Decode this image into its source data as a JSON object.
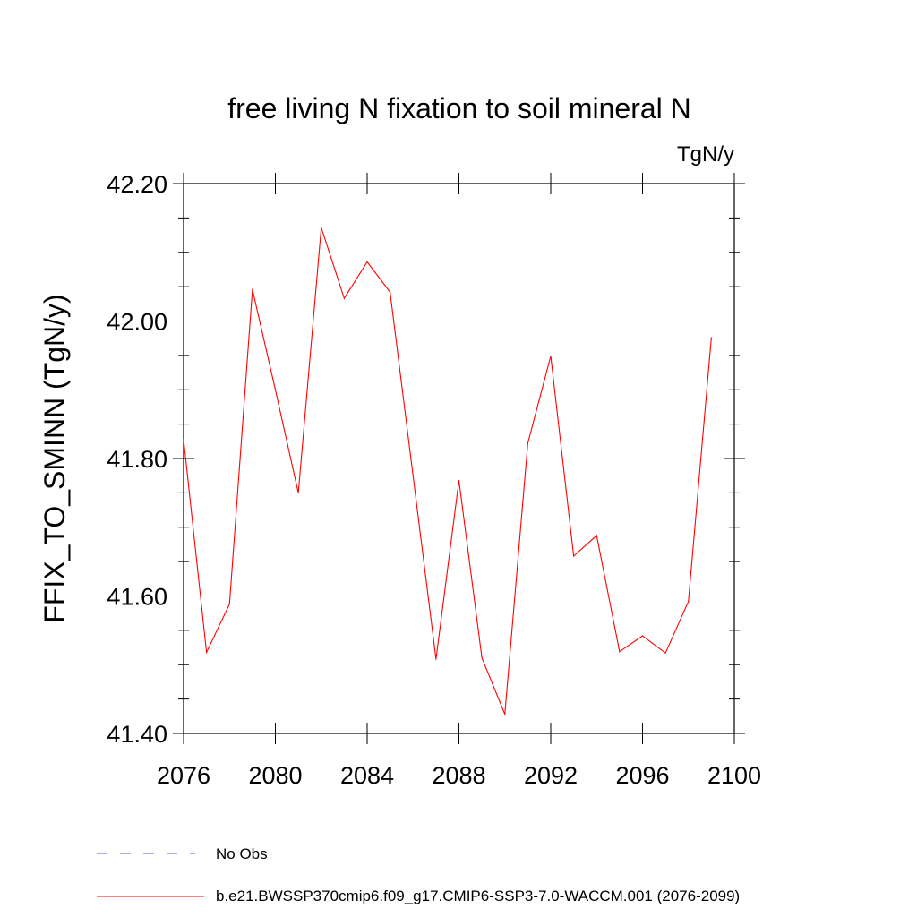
{
  "chart_data": {
    "type": "line",
    "title": "free living N fixation to soil mineral N",
    "units": "TgN/y",
    "ylabel": "FFIX_TO_SMINN  (TgN/y)",
    "xlabel": "",
    "xlim": [
      2076,
      2100
    ],
    "ylim": [
      41.4,
      42.2
    ],
    "xticks": [
      2076,
      2080,
      2084,
      2088,
      2092,
      2096,
      2100
    ],
    "xtick_labels": [
      "2076",
      "2080",
      "2084",
      "2088",
      "2092",
      "2096",
      "2100"
    ],
    "yticks": [
      41.4,
      41.6,
      41.8,
      42.0,
      42.2
    ],
    "ytick_labels": [
      "41.40",
      "41.60",
      "41.80",
      "42.00",
      "42.20"
    ],
    "series": [
      {
        "name": "b.e21.BWSSP370cmip6.f09_g17.CMIP6-SSP3-7.0-WACCM.001 (2076-2099)",
        "color": "#ff0000",
        "x": [
          2076,
          2077,
          2078,
          2079,
          2080,
          2081,
          2082,
          2083,
          2084,
          2085,
          2086,
          2087,
          2088,
          2089,
          2090,
          2091,
          2092,
          2093,
          2094,
          2095,
          2096,
          2097,
          2098,
          2099
        ],
        "values": [
          41.828,
          41.518,
          41.588,
          42.046,
          41.9,
          41.75,
          42.136,
          42.033,
          42.086,
          42.042,
          41.775,
          41.508,
          41.768,
          41.51,
          41.428,
          41.822,
          41.949,
          41.658,
          41.688,
          41.519,
          41.542,
          41.517,
          41.592,
          41.976
        ]
      }
    ],
    "legend": [
      {
        "label": "No Obs",
        "color": "#6a5acd",
        "style": "dashed"
      },
      {
        "label": "b.e21.BWSSP370cmip6.f09_g17.CMIP6-SSP3-7.0-WACCM.001 (2076-2099)",
        "color": "#ff0000",
        "style": "solid"
      }
    ]
  }
}
